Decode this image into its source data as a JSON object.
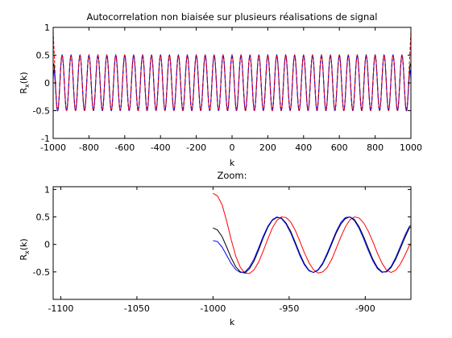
{
  "figure": {
    "title": "Autocorrelation non biaisée sur plusieurs réalisations de signal",
    "zoom_title": "Zoom:"
  },
  "chart_data": [
    {
      "type": "line",
      "title": "Autocorrelation non biaisée sur plusieurs réalisations de signal",
      "xlabel": "k",
      "ylabel": "R_x(k)",
      "ylabel_main": "R",
      "ylabel_sub": "x",
      "ylabel_tail": "(k)",
      "xlim": [
        -1000,
        1000
      ],
      "ylim": [
        -1,
        1
      ],
      "xticks": [
        -1000,
        -800,
        -600,
        -400,
        -200,
        0,
        200,
        400,
        600,
        800,
        1000
      ],
      "xtick_labels": [
        "-1000",
        "-800",
        "-600",
        "-400",
        "-200",
        "0",
        "200",
        "400",
        "600",
        "800",
        "1000"
      ],
      "yticks": [
        -1,
        -0.5,
        0,
        0.5,
        1
      ],
      "ytick_labels": [
        "-1",
        "-0.5",
        "0",
        "0.5",
        "1"
      ],
      "grid": false,
      "model": {
        "description": "cosine autocorrelation, period 50 samples, amplitude 0.5",
        "period": 50,
        "amplitude": 0.5
      },
      "series": [
        {
          "color": "#000000",
          "edge_values": {
            "-1000": 0.3,
            "1000": 0.3
          }
        },
        {
          "color": "#0000ff",
          "edge_values": {
            "-1000": 0.07,
            "1000": 0.07
          }
        },
        {
          "color": "#ff0000",
          "edge_values": {
            "-1000": 0.93,
            "1000": 0.93
          }
        }
      ]
    },
    {
      "type": "line",
      "title": "Zoom:",
      "xlabel": "k",
      "ylabel": "R_x(k)",
      "ylabel_main": "R",
      "ylabel_sub": "x",
      "ylabel_tail": "(k)",
      "xlim": [
        -1105,
        -870
      ],
      "ylim": [
        -1,
        1.05
      ],
      "xticks": [
        -1100,
        -1050,
        -1000,
        -950,
        -900
      ],
      "xtick_labels": [
        "-1100",
        "-1050",
        "-1000",
        "-950",
        "-900"
      ],
      "yticks": [
        -0.5,
        0,
        0.5,
        1
      ],
      "ytick_labels": [
        "-0.5",
        "0",
        "0.5",
        "1"
      ],
      "grid": false,
      "series": [
        {
          "color": "#ff0000",
          "x": [
            -1000,
            -997,
            -994,
            -991,
            -988,
            -985,
            -982,
            -979,
            -976,
            -973,
            -970,
            -967,
            -964,
            -961,
            -958,
            -955,
            -952,
            -949,
            -946,
            -943,
            -940,
            -937,
            -934,
            -931,
            -928,
            -925,
            -922,
            -919,
            -916,
            -913,
            -910,
            -907,
            -904,
            -901,
            -898,
            -895,
            -892,
            -889,
            -886,
            -883,
            -880,
            -877,
            -874,
            -871,
            -868
          ],
          "y": [
            0.93,
            0.88,
            0.72,
            0.42,
            0.08,
            -0.22,
            -0.42,
            -0.52,
            -0.53,
            -0.46,
            -0.32,
            -0.12,
            0.1,
            0.3,
            0.44,
            0.5,
            0.49,
            0.41,
            0.26,
            0.06,
            -0.15,
            -0.33,
            -0.46,
            -0.52,
            -0.5,
            -0.42,
            -0.27,
            -0.07,
            0.14,
            0.32,
            0.45,
            0.5,
            0.48,
            0.39,
            0.24,
            0.05,
            -0.16,
            -0.34,
            -0.47,
            -0.51,
            -0.47,
            -0.36,
            -0.2,
            -0.02,
            0.05
          ]
        },
        {
          "color": "#000000",
          "x": [
            -1000,
            -997,
            -994,
            -991,
            -988,
            -985,
            -982,
            -979,
            -976,
            -973,
            -970,
            -967,
            -964,
            -961,
            -958,
            -955,
            -952,
            -949,
            -946,
            -943,
            -940,
            -937,
            -934,
            -931,
            -928,
            -925,
            -922,
            -919,
            -916,
            -913,
            -910,
            -907,
            -904,
            -901,
            -898,
            -895,
            -892,
            -889,
            -886,
            -883,
            -880,
            -877,
            -874,
            -871,
            -868
          ],
          "y": [
            0.3,
            0.26,
            0.14,
            -0.05,
            -0.25,
            -0.41,
            -0.5,
            -0.52,
            -0.44,
            -0.3,
            -0.1,
            0.12,
            0.31,
            0.44,
            0.49,
            0.48,
            0.39,
            0.24,
            0.04,
            -0.17,
            -0.35,
            -0.47,
            -0.51,
            -0.47,
            -0.36,
            -0.19,
            0.01,
            0.21,
            0.37,
            0.47,
            0.5,
            0.45,
            0.32,
            0.14,
            -0.07,
            -0.27,
            -0.42,
            -0.5,
            -0.5,
            -0.42,
            -0.27,
            -0.08,
            0.12,
            0.3,
            0.36
          ]
        },
        {
          "color": "#0000ff",
          "x": [
            -1000,
            -997,
            -994,
            -991,
            -988,
            -985,
            -982,
            -979,
            -976,
            -973,
            -970,
            -967,
            -964,
            -961,
            -958,
            -955,
            -952,
            -949,
            -946,
            -943,
            -940,
            -937,
            -934,
            -931,
            -928,
            -925,
            -922,
            -919,
            -916,
            -913,
            -910,
            -907,
            -904,
            -901,
            -898,
            -895,
            -892,
            -889,
            -886,
            -883,
            -880,
            -877,
            -874,
            -871,
            -868
          ],
          "y": [
            0.07,
            0.05,
            -0.05,
            -0.2,
            -0.35,
            -0.46,
            -0.51,
            -0.5,
            -0.41,
            -0.26,
            -0.06,
            0.15,
            0.33,
            0.45,
            0.5,
            0.47,
            0.37,
            0.21,
            0.01,
            -0.2,
            -0.37,
            -0.48,
            -0.51,
            -0.46,
            -0.34,
            -0.16,
            0.04,
            0.24,
            0.4,
            0.49,
            0.5,
            0.43,
            0.29,
            0.1,
            -0.11,
            -0.3,
            -0.44,
            -0.51,
            -0.49,
            -0.4,
            -0.24,
            -0.04,
            0.16,
            0.33,
            0.38
          ]
        }
      ]
    }
  ]
}
